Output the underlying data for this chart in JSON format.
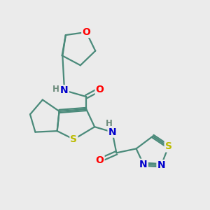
{
  "background_color": "#ebebeb",
  "bond_color": "#4a8a7a",
  "atom_colors": {
    "O": "#ff0000",
    "N": "#0000cc",
    "S": "#bbbb00",
    "C": "#4a8a7a",
    "H": "#6a8a7a"
  },
  "figsize": [
    3.0,
    3.0
  ],
  "dpi": 100,
  "lw": 1.6
}
